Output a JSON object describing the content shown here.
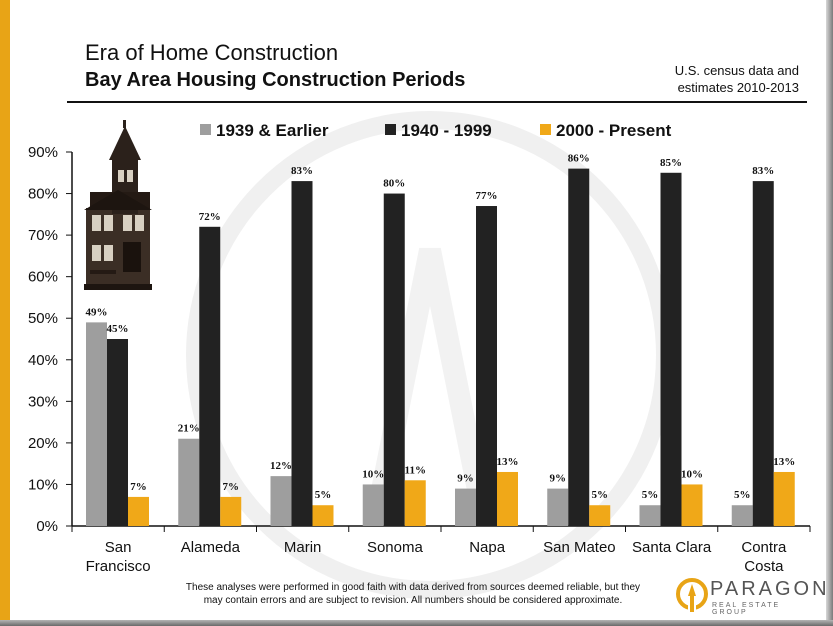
{
  "header": {
    "title": "Era of Home Construction",
    "subtitle": "Bay Area Housing Construction Periods",
    "source_line1": "U.S. census data and",
    "source_line2": "estimates 2010-2013"
  },
  "footer": {
    "disclaimer_line1": "These analyses were performed in good faith with data derived from sources deemed reliable, but they",
    "disclaimer_line2": "may contain errors and are subject to revision.  All numbers should be considered approximate."
  },
  "logo": {
    "name": "PARAGON",
    "tagline": "REAL ESTATE GROUP"
  },
  "colors": {
    "accent": "#e8a416",
    "series_1939": "#9e9e9e",
    "series_1940": "#222222",
    "series_2000": "#f0a818"
  },
  "chart_data": {
    "type": "bar",
    "title": "Bay Area Housing Construction Periods",
    "categories": [
      [
        "San",
        "Francisco"
      ],
      [
        "Alameda"
      ],
      [
        "Marin"
      ],
      [
        "Sonoma"
      ],
      [
        "Napa"
      ],
      [
        "San Mateo"
      ],
      [
        "Santa Clara"
      ],
      [
        "Contra",
        "Costa"
      ]
    ],
    "series": [
      {
        "name": "1939 & Earlier",
        "color": "#9e9e9e",
        "values": [
          0.49,
          0.21,
          0.12,
          0.1,
          0.09,
          0.09,
          0.05,
          0.05
        ],
        "labels": [
          "49%",
          "21%",
          "12%",
          "10%",
          "9%",
          "9%",
          "5%",
          "5%"
        ]
      },
      {
        "name": "1940 - 1999",
        "color": "#222222",
        "values": [
          0.45,
          0.72,
          0.83,
          0.8,
          0.77,
          0.86,
          0.85,
          0.83
        ],
        "labels": [
          "45%",
          "72%",
          "83%",
          "80%",
          "77%",
          "86%",
          "85%",
          "83%"
        ]
      },
      {
        "name": "2000 - Present",
        "color": "#f0a818",
        "values": [
          0.07,
          0.07,
          0.05,
          0.11,
          0.13,
          0.05,
          0.1,
          0.13
        ],
        "labels": [
          "7%",
          "7%",
          "5%",
          "11%",
          "13%",
          "5%",
          "10%",
          "13%"
        ]
      }
    ],
    "yticks": [
      "0%",
      "10%",
      "20%",
      "30%",
      "40%",
      "50%",
      "60%",
      "70%",
      "80%",
      "90%"
    ],
    "ylim": [
      0,
      0.9
    ],
    "legend_position": "top",
    "grid": false
  }
}
